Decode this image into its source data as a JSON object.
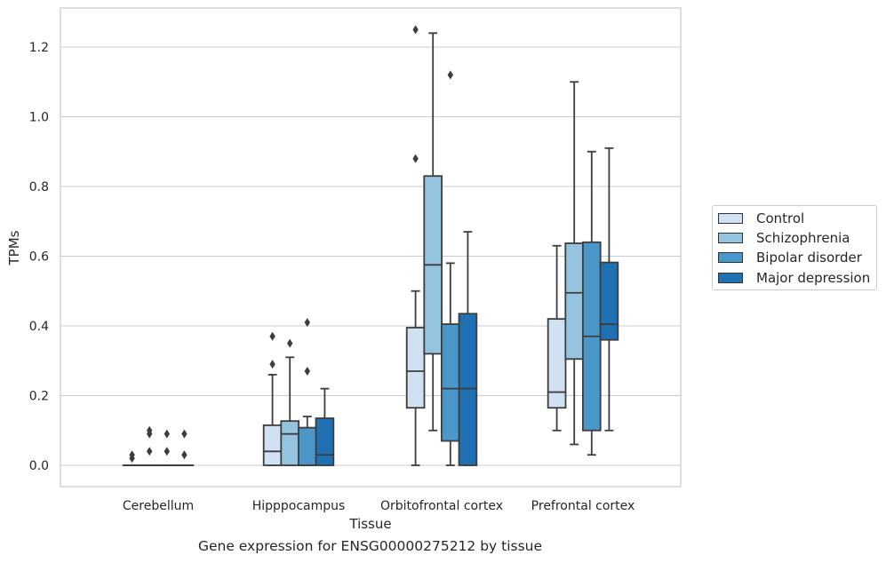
{
  "chart_data": {
    "type": "box",
    "caption": "Gene expression for ENSG00000275212 by tissue",
    "xlabel": "Tissue",
    "ylabel": "TPMs",
    "ylim": [
      -0.06,
      1.31
    ],
    "yticks": [
      0.0,
      0.2,
      0.4,
      0.6,
      0.8,
      1.0,
      1.2
    ],
    "ytick_labels": [
      "0.0",
      "0.2",
      "0.4",
      "0.6",
      "0.8",
      "1.0",
      "1.2"
    ],
    "grid": true,
    "legend_position": "right, outside",
    "categories": [
      "Cerebellum",
      "Hipppocampus",
      "Orbitofrontal cortex",
      "Prefrontal cortex"
    ],
    "series": [
      {
        "name": "Control",
        "color": "#d0e1f2",
        "boxes": [
          {
            "whislo": 0.0,
            "q1": 0.0,
            "med": 0.0,
            "q3": 0.0,
            "whishi": 0.0,
            "fliers": [
              0.02,
              0.03
            ]
          },
          {
            "whislo": 0.0,
            "q1": 0.0,
            "med": 0.04,
            "q3": 0.115,
            "whishi": 0.26,
            "fliers": [
              0.29,
              0.37
            ]
          },
          {
            "whislo": 0.0,
            "q1": 0.165,
            "med": 0.27,
            "q3": 0.395,
            "whishi": 0.5,
            "fliers": [
              0.88,
              1.25
            ]
          },
          {
            "whislo": 0.1,
            "q1": 0.165,
            "med": 0.21,
            "q3": 0.42,
            "whishi": 0.63,
            "fliers": []
          }
        ]
      },
      {
        "name": "Schizophrenia",
        "color": "#94c4df",
        "boxes": [
          {
            "whislo": 0.0,
            "q1": 0.0,
            "med": 0.0,
            "q3": 0.0,
            "whishi": 0.0,
            "fliers": [
              0.04,
              0.09,
              0.1
            ]
          },
          {
            "whislo": 0.0,
            "q1": 0.0,
            "med": 0.09,
            "q3": 0.127,
            "whishi": 0.31,
            "fliers": [
              0.35
            ]
          },
          {
            "whislo": 0.1,
            "q1": 0.32,
            "med": 0.575,
            "q3": 0.83,
            "whishi": 1.24,
            "fliers": []
          },
          {
            "whislo": 0.06,
            "q1": 0.305,
            "med": 0.495,
            "q3": 0.637,
            "whishi": 1.1,
            "fliers": []
          }
        ]
      },
      {
        "name": "Bipolar disorder",
        "color": "#4a98c9",
        "boxes": [
          {
            "whislo": 0.0,
            "q1": 0.0,
            "med": 0.0,
            "q3": 0.0,
            "whishi": 0.0,
            "fliers": [
              0.04,
              0.09
            ]
          },
          {
            "whislo": 0.0,
            "q1": 0.0,
            "med": 0.0,
            "q3": 0.108,
            "whishi": 0.14,
            "fliers": [
              0.27,
              0.41
            ]
          },
          {
            "whislo": 0.0,
            "q1": 0.07,
            "med": 0.22,
            "q3": 0.405,
            "whishi": 0.58,
            "fliers": [
              1.12
            ]
          },
          {
            "whislo": 0.03,
            "q1": 0.1,
            "med": 0.37,
            "q3": 0.64,
            "whishi": 0.9,
            "fliers": []
          }
        ]
      },
      {
        "name": "Major depression",
        "color": "#2070b4",
        "boxes": [
          {
            "whislo": 0.0,
            "q1": 0.0,
            "med": 0.0,
            "q3": 0.0,
            "whishi": 0.0,
            "fliers": [
              0.03,
              0.09
            ]
          },
          {
            "whislo": 0.0,
            "q1": 0.0,
            "med": 0.03,
            "q3": 0.135,
            "whishi": 0.22,
            "fliers": []
          },
          {
            "whislo": 0.0,
            "q1": 0.0,
            "med": 0.22,
            "q3": 0.435,
            "whishi": 0.67,
            "fliers": []
          },
          {
            "whislo": 0.1,
            "q1": 0.36,
            "med": 0.405,
            "q3": 0.582,
            "whishi": 0.91,
            "fliers": []
          }
        ]
      }
    ]
  }
}
